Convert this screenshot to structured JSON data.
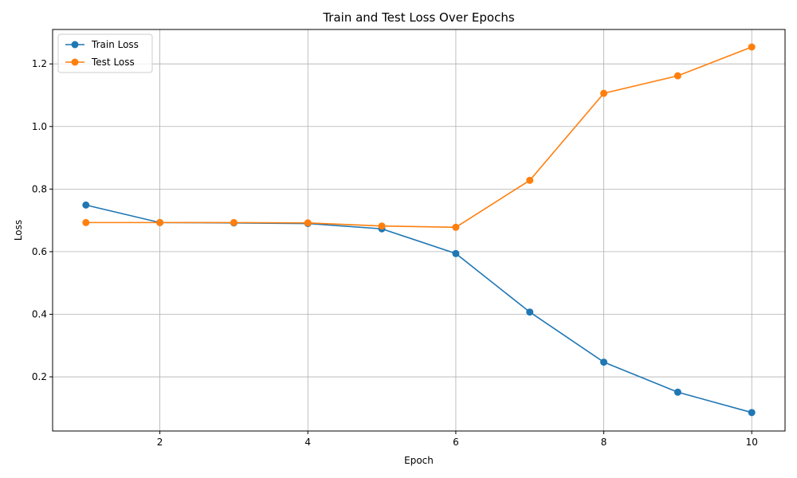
{
  "chart_data": {
    "type": "line",
    "title": "Train and Test Loss Over Epochs",
    "xlabel": "Epoch",
    "ylabel": "Loss",
    "x": [
      1,
      2,
      3,
      4,
      5,
      6,
      7,
      8,
      9,
      10
    ],
    "xlim": [
      0.55,
      10.45
    ],
    "ylim": [
      0.027,
      1.31
    ],
    "xticks": [
      2,
      4,
      6,
      8,
      10
    ],
    "yticks": [
      0.2,
      0.4,
      0.6,
      0.8,
      1.0,
      1.2
    ],
    "ytick_labels": [
      "0.2",
      "0.4",
      "0.6",
      "0.8",
      "1.0",
      "1.2"
    ],
    "grid": true,
    "legend_position": "top-left",
    "series": [
      {
        "name": "Train Loss",
        "color": "#1f77b4",
        "marker": "circle",
        "values": [
          0.749,
          0.693,
          0.692,
          0.69,
          0.673,
          0.594,
          0.407,
          0.247,
          0.151,
          0.086
        ]
      },
      {
        "name": "Test Loss",
        "color": "#ff7f0e",
        "marker": "circle",
        "values": [
          0.693,
          0.693,
          0.693,
          0.692,
          0.682,
          0.678,
          0.828,
          1.106,
          1.162,
          1.254
        ]
      }
    ]
  }
}
